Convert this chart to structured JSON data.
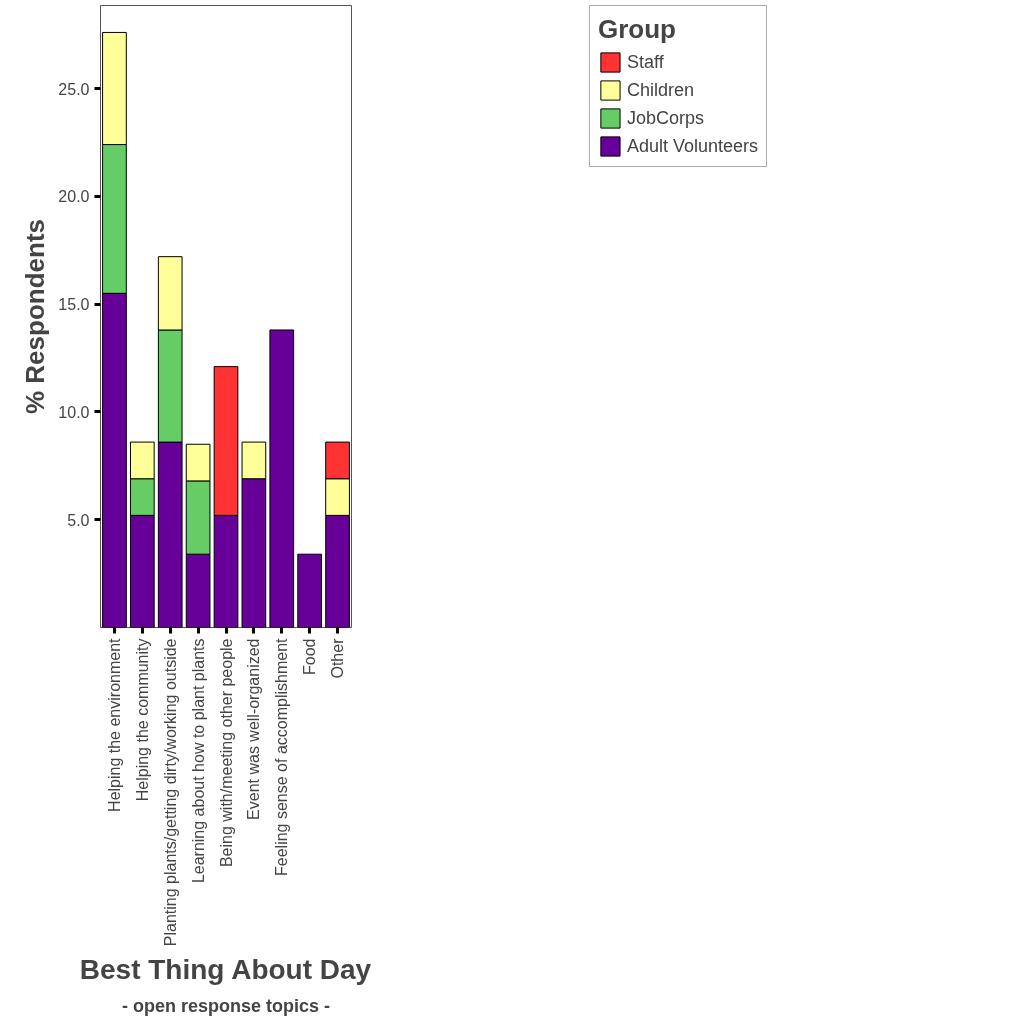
{
  "chart_data": {
    "type": "bar",
    "stacked": true,
    "xlabel": "Best Thing About Day",
    "ylabel": "% Respondents",
    "legend_title": "Group",
    "legend": "top right",
    "annotations": [
      "- open response topics -"
    ],
    "categories": [
      "Helping the environment",
      "Helping the community",
      "Planting plants/getting dirty/working outside",
      "Learning about how to plant plants",
      "Being with/meeting other people",
      "Event was well-organized",
      "Feeling sense of accomplishment",
      "Food",
      "Other"
    ],
    "series": [
      {
        "name": "Adult Volunteers",
        "color": "#660099",
        "values": [
          15.5,
          5.2,
          8.6,
          3.4,
          5.2,
          6.9,
          13.8,
          3.4,
          5.2
        ]
      },
      {
        "name": "JobCorps",
        "color": "#66cc66",
        "values": [
          6.9,
          1.7,
          5.2,
          3.4,
          null,
          null,
          null,
          null,
          null
        ]
      },
      {
        "name": "Children",
        "color": "#ffff99",
        "values": [
          5.2,
          1.7,
          3.4,
          1.7,
          null,
          1.7,
          null,
          null,
          1.7
        ]
      },
      {
        "name": "Staff",
        "color": "#ff3333",
        "values": [
          null,
          null,
          null,
          null,
          6.9,
          null,
          null,
          null,
          1.7
        ]
      }
    ],
    "ylim": [
      0,
      28.85
    ],
    "yticks": [
      {
        "value": 5,
        "label": "5.0"
      },
      {
        "value": 10,
        "label": "10.0"
      },
      {
        "value": 15,
        "label": "15.0"
      },
      {
        "value": 20,
        "label": "20.0"
      },
      {
        "value": 25,
        "label": "25.0"
      }
    ],
    "grid": false
  }
}
